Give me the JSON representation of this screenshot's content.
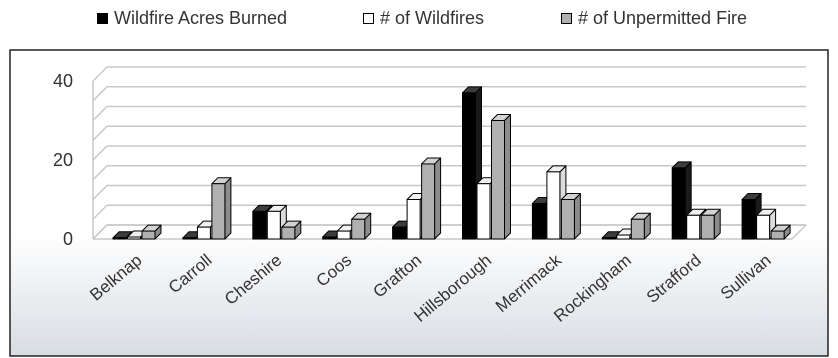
{
  "chart_data": {
    "type": "bar",
    "title": "",
    "xlabel": "",
    "ylabel": "",
    "categories": [
      "Belknap",
      "Carroll",
      "Cheshire",
      "Coos",
      "Grafton",
      "Hillsborough",
      "Merrimack",
      "Rockingham",
      "Strafford",
      "Sullivan"
    ],
    "series": [
      {
        "name": "Wildfire Acres Burned",
        "color": "#000000",
        "values": [
          0.3,
          0.3,
          7,
          0.5,
          3,
          37,
          9,
          0.3,
          18,
          10
        ]
      },
      {
        "name": "# of Wildfires",
        "color": "#ffffff",
        "values": [
          0.5,
          3,
          7,
          2,
          10,
          14,
          17,
          1,
          6,
          6
        ]
      },
      {
        "name": "# of Unpermitted Fire",
        "color": "#b0b0b0",
        "values": [
          2,
          14,
          3,
          5,
          19,
          30,
          10,
          5,
          6,
          2
        ]
      }
    ],
    "yticks": [
      0,
      20,
      40
    ],
    "ylim": [
      0,
      40
    ],
    "grid": true,
    "legend_position": "top",
    "style": "3d-clustered-column"
  }
}
